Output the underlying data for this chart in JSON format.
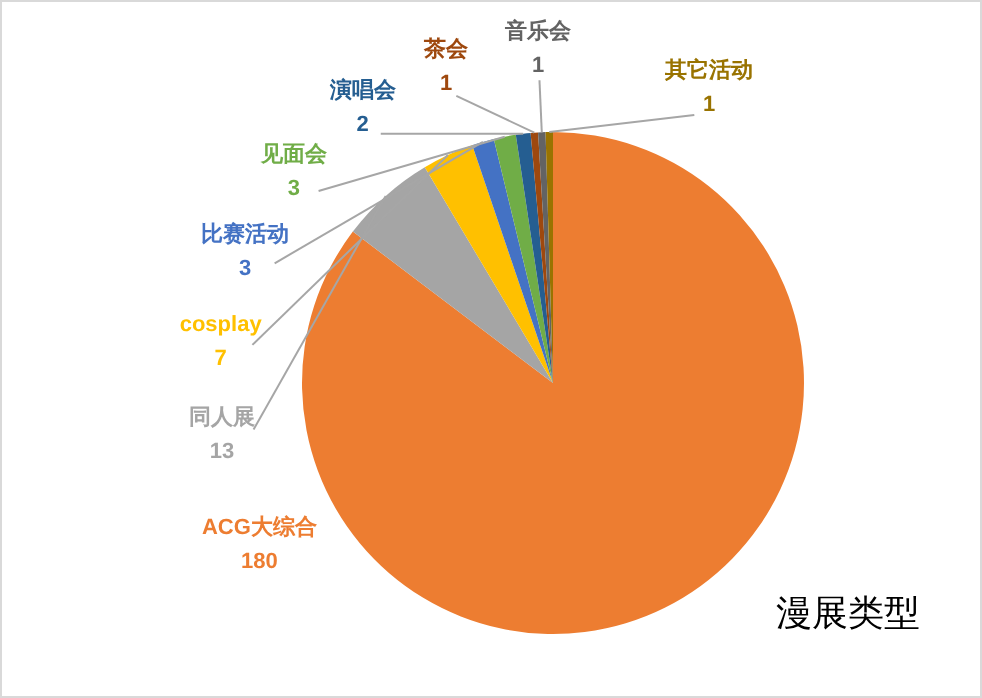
{
  "chart_data": {
    "type": "pie",
    "title": "漫展类型",
    "categories": [
      "ACG大综合",
      "同人展",
      "cosplay",
      "比赛活动",
      "见面会",
      "演唱会",
      "茶会",
      "音乐会",
      "其它活动"
    ],
    "values": [
      180,
      13,
      7,
      3,
      3,
      2,
      1,
      1,
      1
    ],
    "colors": [
      "#ed7d31",
      "#a5a5a5",
      "#ffc000",
      "#4472c4",
      "#70ad47",
      "#255e91",
      "#9e480e",
      "#636363",
      "#997300"
    ],
    "data_labels": true,
    "legend": false
  }
}
